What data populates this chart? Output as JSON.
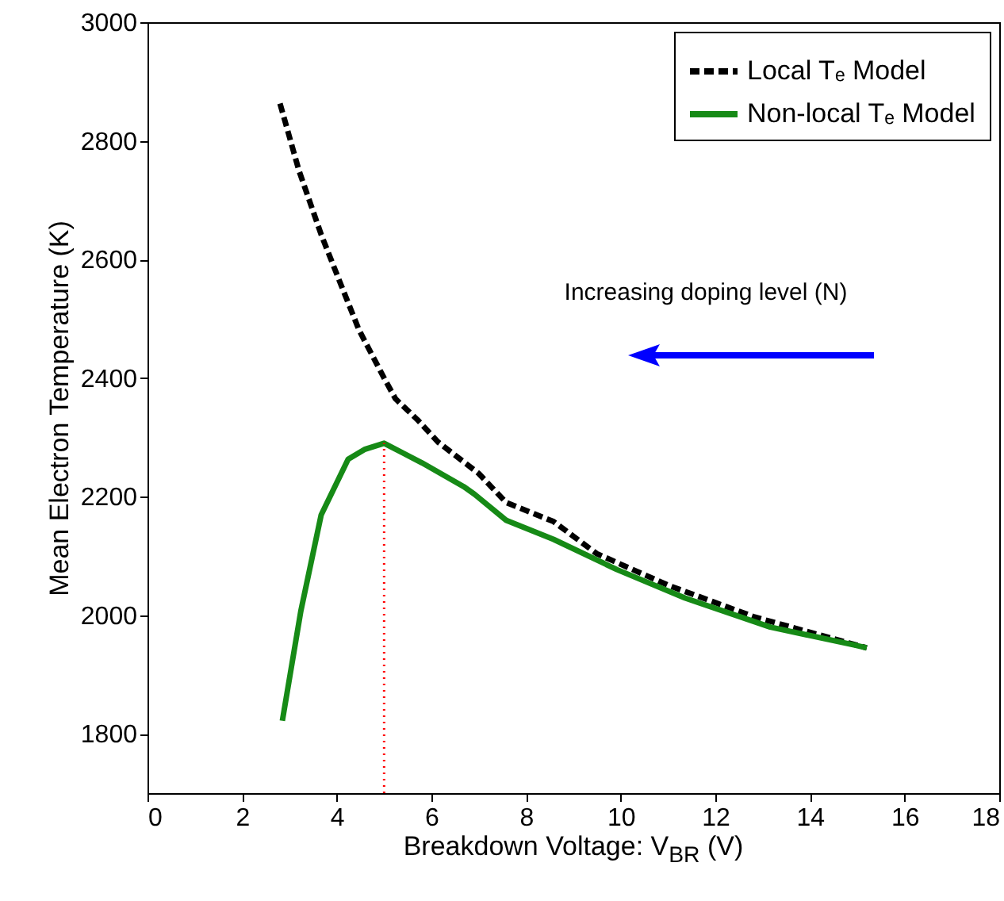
{
  "chart_data": {
    "type": "line",
    "xlabel": "Breakdown Voltage: V$_{BR}$ (V)",
    "ylabel": "Mean Electron Temperature (K)",
    "xlim": [
      0,
      18
    ],
    "xticks": [
      0,
      2,
      4,
      6,
      8,
      10,
      12,
      14,
      16,
      18
    ],
    "ylim": [
      1700,
      3000
    ],
    "yticks": [
      1800,
      2000,
      2200,
      2400,
      2600,
      2800,
      3000
    ],
    "grid": false,
    "legend": "top right",
    "marker": "none",
    "annotations": [
      "Increasing doping level (N)"
    ],
    "ref_lines": [
      {
        "axis": "x",
        "value": 5,
        "label": null,
        "color": "#ff0000",
        "line_style": "dotted"
      }
    ],
    "series": [
      {
        "name": "Local Tₑ Model",
        "color": "#000000",
        "line_style": "dashed",
        "x": [
          2.8,
          3.2,
          3.67,
          4.1,
          4.47,
          5,
          5.24,
          5.7,
          6.14,
          7,
          7.58,
          8.58,
          9.49,
          11.02,
          12.83,
          14.83,
          15.2
        ],
        "values": [
          2863,
          2750,
          2642,
          2555,
          2481,
          2400,
          2365,
          2330,
          2292,
          2239,
          2190,
          2158,
          2104,
          2050,
          1997,
          1953,
          1945
        ]
      },
      {
        "name": "Non-local Tₑ Model",
        "color": "#168a16",
        "line_style": "solid",
        "x": [
          2.85,
          3.24,
          3.67,
          4.24,
          4.6,
          5,
          5.8,
          6.68,
          6.91,
          7.58,
          8.58,
          9.92,
          11.36,
          13.16,
          14.93,
          15.2
        ],
        "values": [
          1822,
          2007,
          2169,
          2263,
          2280,
          2290,
          2257,
          2217,
          2204,
          2160,
          2128,
          2077,
          2029,
          1980,
          1950,
          1945
        ]
      }
    ]
  }
}
